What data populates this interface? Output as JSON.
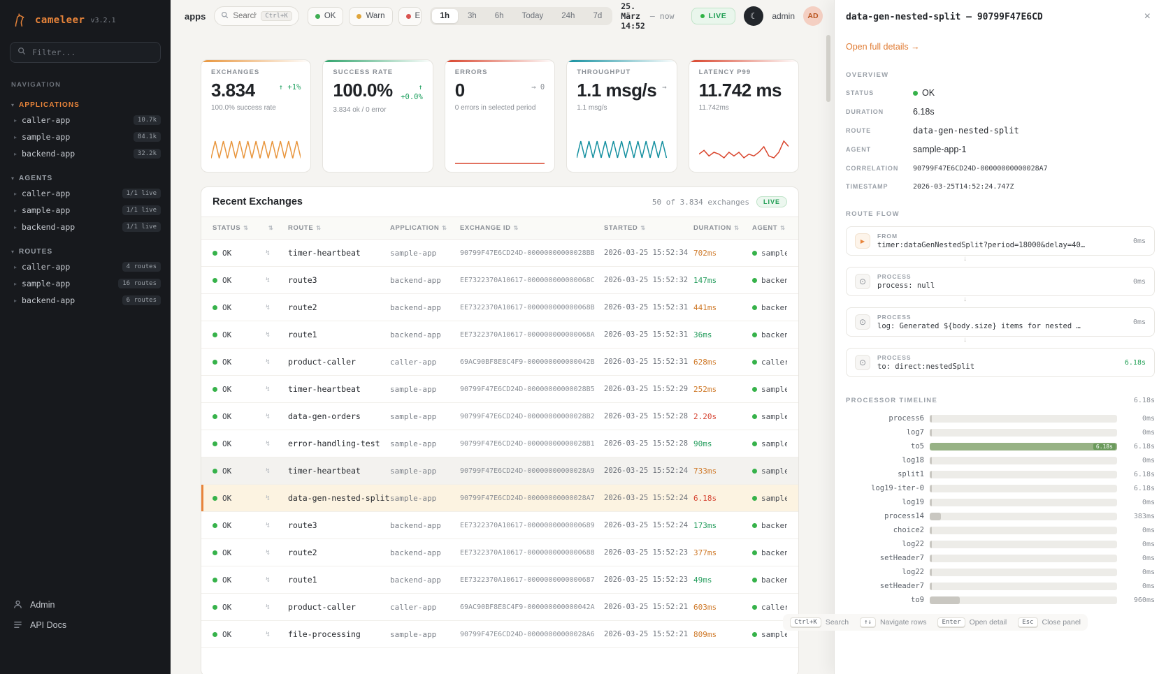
{
  "icons": {
    "caret_section": "▾",
    "caret_item": "▸",
    "sort": "⇅",
    "bolt": "↯",
    "play": "▶",
    "process": "⊙",
    "moon": "☾",
    "close": "×",
    "arrow_down": "↓"
  },
  "sidebar": {
    "logo": {
      "name": "cameleer",
      "version": "v3.2.1"
    },
    "filter_placeholder": "Filter...",
    "nav_label": "NAVIGATION",
    "sections": [
      {
        "label": "APPLICATIONS",
        "accent": true,
        "items": [
          {
            "label": "caller-app",
            "badge": "10.7k"
          },
          {
            "label": "sample-app",
            "badge": "84.1k"
          },
          {
            "label": "backend-app",
            "badge": "32.2k"
          }
        ]
      },
      {
        "label": "AGENTS",
        "accent": false,
        "items": [
          {
            "label": "caller-app",
            "badge": "1/1 live"
          },
          {
            "label": "sample-app",
            "badge": "1/1 live"
          },
          {
            "label": "backend-app",
            "badge": "1/1 live"
          }
        ]
      },
      {
        "label": "ROUTES",
        "accent": false,
        "items": [
          {
            "label": "caller-app",
            "badge": "4 routes"
          },
          {
            "label": "sample-app",
            "badge": "16 routes"
          },
          {
            "label": "backend-app",
            "badge": "6 routes"
          }
        ]
      }
    ],
    "footer": [
      {
        "label": "Admin"
      },
      {
        "label": "API Docs"
      }
    ]
  },
  "topbar": {
    "context": "apps",
    "search": {
      "placeholder": "Search",
      "shortcut": "Ctrl+K"
    },
    "status_filters": [
      {
        "label": "OK",
        "color": "#3fae53"
      },
      {
        "label": "Warn",
        "color": "#e0a63c"
      },
      {
        "label": "Error",
        "color": "#d9534f"
      }
    ],
    "ranges": [
      {
        "label": "1h",
        "active": true
      },
      {
        "label": "3h",
        "active": false
      },
      {
        "label": "6h",
        "active": false
      },
      {
        "label": "Today",
        "active": false
      },
      {
        "label": "24h",
        "active": false
      },
      {
        "label": "7d",
        "active": false
      }
    ],
    "period_start": "25. März 14:52",
    "period_sep": "—",
    "period_end": "now",
    "live_label": "LIVE",
    "user_name": "admin",
    "user_initials": "AD"
  },
  "kpis": [
    {
      "label": "EXCHANGES",
      "value": "3.834",
      "trend_lines": [
        "↑ +1%"
      ],
      "trend_color": "#1a9e5c",
      "sub": "100.0% success rate",
      "accent": "#e8953c",
      "spark_color": "#e8953c",
      "spark": [
        3,
        13,
        3,
        13,
        3,
        13,
        3,
        13,
        3,
        13,
        3,
        13,
        3,
        13,
        3,
        13,
        3,
        13,
        3,
        13,
        3,
        13,
        3
      ]
    },
    {
      "label": "SUCCESS RATE",
      "value": "100.0%",
      "trend_lines": [
        "↑",
        "+0.0%"
      ],
      "trend_color": "#1a9e5c",
      "sub": "3.834 ok / 0 error",
      "accent": "#2fa36b",
      "spark_color": null,
      "spark": null
    },
    {
      "label": "ERRORS",
      "value": "0",
      "trend_lines": [
        "→ 0"
      ],
      "trend_color": "#8a8f96",
      "sub": "0 errors in selected period",
      "accent": "#d9442c",
      "spark_color": "#d9442c",
      "spark": [
        0,
        0,
        0,
        0,
        0,
        0,
        0,
        0
      ]
    },
    {
      "label": "THROUGHPUT",
      "value": "1.1 msg/s",
      "trend_lines": [
        "→"
      ],
      "trend_color": "#8a8f96",
      "sub": "1.1 msg/s",
      "accent": "#1490a0",
      "spark_color": "#1490a0",
      "spark": [
        3,
        12,
        3,
        12,
        3,
        12,
        3,
        12,
        3,
        12,
        3,
        12,
        3,
        12,
        3,
        12,
        3,
        12,
        3,
        12,
        3,
        12,
        3
      ]
    },
    {
      "label": "LATENCY P99",
      "value": "11.742 ms",
      "trend_lines": [],
      "trend_color": "#8a8f96",
      "sub": "11.742ms",
      "accent": "#d9442c",
      "spark_color": "#d9442c",
      "spark": [
        5,
        7,
        4,
        6,
        5,
        3,
        6,
        4,
        6,
        3,
        5,
        4,
        6,
        9,
        4,
        3,
        6,
        12,
        9
      ]
    }
  ],
  "exchanges": {
    "title": "Recent Exchanges",
    "meta": "50 of 3.834 exchanges",
    "live_label": "LIVE",
    "columns": [
      "STATUS",
      "",
      "ROUTE",
      "APPLICATION",
      "EXCHANGE ID",
      "STARTED",
      "DURATION",
      "AGENT"
    ],
    "rows": [
      {
        "status": "OK",
        "route": "timer-heartbeat",
        "app": "sample-app",
        "id": "90799F47E6CD24D-00000000000028BB",
        "started": "2026-03-25 15:52:34",
        "duration": "702ms",
        "dlevel": "warn",
        "agent": "sample",
        "state": ""
      },
      {
        "status": "OK",
        "route": "route3",
        "app": "backend-app",
        "id": "EE7322370A10617-000000000000068C",
        "started": "2026-03-25 15:52:32",
        "duration": "147ms",
        "dlevel": "ok",
        "agent": "backen",
        "state": ""
      },
      {
        "status": "OK",
        "route": "route2",
        "app": "backend-app",
        "id": "EE7322370A10617-000000000000068B",
        "started": "2026-03-25 15:52:31",
        "duration": "441ms",
        "dlevel": "warn",
        "agent": "backen",
        "state": ""
      },
      {
        "status": "OK",
        "route": "route1",
        "app": "backend-app",
        "id": "EE7322370A10617-000000000000068A",
        "started": "2026-03-25 15:52:31",
        "duration": "36ms",
        "dlevel": "ok",
        "agent": "backen",
        "state": ""
      },
      {
        "status": "OK",
        "route": "product-caller",
        "app": "caller-app",
        "id": "69AC90BF8E8C4F9-000000000000042B",
        "started": "2026-03-25 15:52:31",
        "duration": "628ms",
        "dlevel": "warn",
        "agent": "caller",
        "state": ""
      },
      {
        "status": "OK",
        "route": "timer-heartbeat",
        "app": "sample-app",
        "id": "90799F47E6CD24D-00000000000028B5",
        "started": "2026-03-25 15:52:29",
        "duration": "252ms",
        "dlevel": "warn",
        "agent": "sample",
        "state": ""
      },
      {
        "status": "OK",
        "route": "data-gen-orders",
        "app": "sample-app",
        "id": "90799F47E6CD24D-00000000000028B2",
        "started": "2026-03-25 15:52:28",
        "duration": "2.20s",
        "dlevel": "slow",
        "agent": "sample",
        "state": ""
      },
      {
        "status": "OK",
        "route": "error-handling-test",
        "app": "sample-app",
        "id": "90799F47E6CD24D-00000000000028B1",
        "started": "2026-03-25 15:52:28",
        "duration": "90ms",
        "dlevel": "ok",
        "agent": "sample",
        "state": ""
      },
      {
        "status": "OK",
        "route": "timer-heartbeat",
        "app": "sample-app",
        "id": "90799F47E6CD24D-00000000000028A9",
        "started": "2026-03-25 15:52:24",
        "duration": "733ms",
        "dlevel": "warn",
        "agent": "sample",
        "state": "hover"
      },
      {
        "status": "OK",
        "route": "data-gen-nested-split",
        "app": "sample-app",
        "id": "90799F47E6CD24D-00000000000028A7",
        "started": "2026-03-25 15:52:24",
        "duration": "6.18s",
        "dlevel": "slow",
        "agent": "sample",
        "state": "selected"
      },
      {
        "status": "OK",
        "route": "route3",
        "app": "backend-app",
        "id": "EE7322370A10617-0000000000000689",
        "started": "2026-03-25 15:52:24",
        "duration": "173ms",
        "dlevel": "ok",
        "agent": "backen",
        "state": ""
      },
      {
        "status": "OK",
        "route": "route2",
        "app": "backend-app",
        "id": "EE7322370A10617-0000000000000688",
        "started": "2026-03-25 15:52:23",
        "duration": "377ms",
        "dlevel": "warn",
        "agent": "backen",
        "state": ""
      },
      {
        "status": "OK",
        "route": "route1",
        "app": "backend-app",
        "id": "EE7322370A10617-0000000000000687",
        "started": "2026-03-25 15:52:23",
        "duration": "49ms",
        "dlevel": "ok",
        "agent": "backen",
        "state": ""
      },
      {
        "status": "OK",
        "route": "product-caller",
        "app": "caller-app",
        "id": "69AC90BF8E8C4F9-000000000000042A",
        "started": "2026-03-25 15:52:21",
        "duration": "603ms",
        "dlevel": "warn",
        "agent": "caller",
        "state": ""
      },
      {
        "status": "OK",
        "route": "file-processing",
        "app": "sample-app",
        "id": "90799F47E6CD24D-00000000000028A6",
        "started": "2026-03-25 15:52:21",
        "duration": "809ms",
        "dlevel": "warn",
        "agent": "sample",
        "state": ""
      }
    ]
  },
  "panel": {
    "title": "data-gen-nested-split — 90799F47E6CD",
    "open_link": "Open full details →",
    "overview_label": "OVERVIEW",
    "overview": [
      {
        "key": "STATUS",
        "value": "OK"
      },
      {
        "key": "DURATION",
        "value": "6.18s"
      },
      {
        "key": "ROUTE",
        "value": "data-gen-nested-split"
      },
      {
        "key": "AGENT",
        "value": "sample-app-1"
      },
      {
        "key": "CORRELATION",
        "value": "90799F47E6CD24D-00000000000028A7"
      },
      {
        "key": "TIMESTAMP",
        "value": "2026-03-25T14:52:24.747Z"
      }
    ],
    "flow_label": "ROUTE FLOW",
    "flow": [
      {
        "kind": "FROM",
        "text": "timer:dataGenNestedSplit?period=18000&delay=40…",
        "duration": "0ms"
      },
      {
        "kind": "PROCESS",
        "text": "process: null",
        "duration": "0ms"
      },
      {
        "kind": "PROCESS",
        "text": "log: Generated ${body.size} items for nested …",
        "duration": "0ms"
      },
      {
        "kind": "PROCESS",
        "text": "to: direct:nestedSplit",
        "duration": "6.18s"
      }
    ],
    "timeline_label": "PROCESSOR TIMELINE",
    "timeline_total": "6.18s",
    "timeline": [
      {
        "name": "process6",
        "value": "0ms",
        "fill_pct": 1,
        "highlight": false,
        "bar_label": ""
      },
      {
        "name": "log7",
        "value": "0ms",
        "fill_pct": 1,
        "highlight": false,
        "bar_label": ""
      },
      {
        "name": "to5",
        "value": "6.18s",
        "fill_pct": 100,
        "highlight": true,
        "bar_label": "6.18s"
      },
      {
        "name": "log18",
        "value": "0ms",
        "fill_pct": 1,
        "highlight": false,
        "bar_label": ""
      },
      {
        "name": "split1",
        "value": "6.18s",
        "fill_pct": 1,
        "highlight": false,
        "bar_label": ""
      },
      {
        "name": "log19-iter-0",
        "value": "6.18s",
        "fill_pct": 1,
        "highlight": false,
        "bar_label": ""
      },
      {
        "name": "log19",
        "value": "0ms",
        "fill_pct": 1,
        "highlight": false,
        "bar_label": ""
      },
      {
        "name": "process14",
        "value": "383ms",
        "fill_pct": 6,
        "highlight": false,
        "bar_label": ""
      },
      {
        "name": "choice2",
        "value": "0ms",
        "fill_pct": 1,
        "highlight": false,
        "bar_label": ""
      },
      {
        "name": "log22",
        "value": "0ms",
        "fill_pct": 1,
        "highlight": false,
        "bar_label": ""
      },
      {
        "name": "setHeader7",
        "value": "0ms",
        "fill_pct": 1,
        "highlight": false,
        "bar_label": ""
      },
      {
        "name": "log22",
        "value": "0ms",
        "fill_pct": 1,
        "highlight": false,
        "bar_label": ""
      },
      {
        "name": "setHeader7",
        "value": "0ms",
        "fill_pct": 1,
        "highlight": false,
        "bar_label": ""
      },
      {
        "name": "to9",
        "value": "960ms",
        "fill_pct": 16,
        "highlight": false,
        "bar_label": ""
      }
    ]
  },
  "hints": [
    {
      "key": "Ctrl+K",
      "label": "Search"
    },
    {
      "key": "↑↓",
      "label": "Navigate rows"
    },
    {
      "key": "Enter",
      "label": "Open detail"
    },
    {
      "key": "Esc",
      "label": "Close panel"
    }
  ]
}
